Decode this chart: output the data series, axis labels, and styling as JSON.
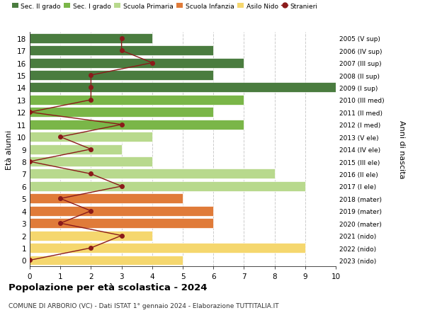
{
  "ages": [
    18,
    17,
    16,
    15,
    14,
    13,
    12,
    11,
    10,
    9,
    8,
    7,
    6,
    5,
    4,
    3,
    2,
    1,
    0
  ],
  "years": [
    "2005 (V sup)",
    "2006 (IV sup)",
    "2007 (III sup)",
    "2008 (II sup)",
    "2009 (I sup)",
    "2010 (III med)",
    "2011 (II med)",
    "2012 (I med)",
    "2013 (V ele)",
    "2014 (IV ele)",
    "2015 (III ele)",
    "2016 (II ele)",
    "2017 (I ele)",
    "2018 (mater)",
    "2019 (mater)",
    "2020 (mater)",
    "2021 (nido)",
    "2022 (nido)",
    "2023 (nido)"
  ],
  "bar_values": [
    4,
    6,
    7,
    6,
    10,
    7,
    6,
    7,
    4,
    3,
    4,
    8,
    9,
    5,
    6,
    6,
    4,
    9,
    5
  ],
  "bar_colors": [
    "#4a7c3f",
    "#4a7c3f",
    "#4a7c3f",
    "#4a7c3f",
    "#4a7c3f",
    "#7ab648",
    "#7ab648",
    "#7ab648",
    "#b8d98d",
    "#b8d98d",
    "#b8d98d",
    "#b8d98d",
    "#b8d98d",
    "#e07b39",
    "#e07b39",
    "#e07b39",
    "#f5d76e",
    "#f5d76e",
    "#f5d76e"
  ],
  "stranieri_values": [
    3,
    3,
    4,
    2,
    2,
    2,
    0,
    3,
    1,
    2,
    0,
    2,
    3,
    1,
    2,
    1,
    3,
    2,
    0
  ],
  "legend_labels": [
    "Sec. II grado",
    "Sec. I grado",
    "Scuola Primaria",
    "Scuola Infanzia",
    "Asilo Nido",
    "Stranieri"
  ],
  "legend_colors": [
    "#4a7c3f",
    "#7ab648",
    "#b8d98d",
    "#e07b39",
    "#f5d76e",
    "#aa2222"
  ],
  "title": "Popolazione per età scolastica - 2024",
  "subtitle": "COMUNE DI ARBORIO (VC) - Dati ISTAT 1° gennaio 2024 - Elaborazione TUTTITALIA.IT",
  "ylabel_left": "Età alunni",
  "ylabel_right": "Anni di nascita",
  "xlim": [
    0,
    10
  ],
  "bar_height": 0.8,
  "grid_color": "#cccccc",
  "background_color": "#ffffff",
  "stranieri_color": "#8b1a1a"
}
